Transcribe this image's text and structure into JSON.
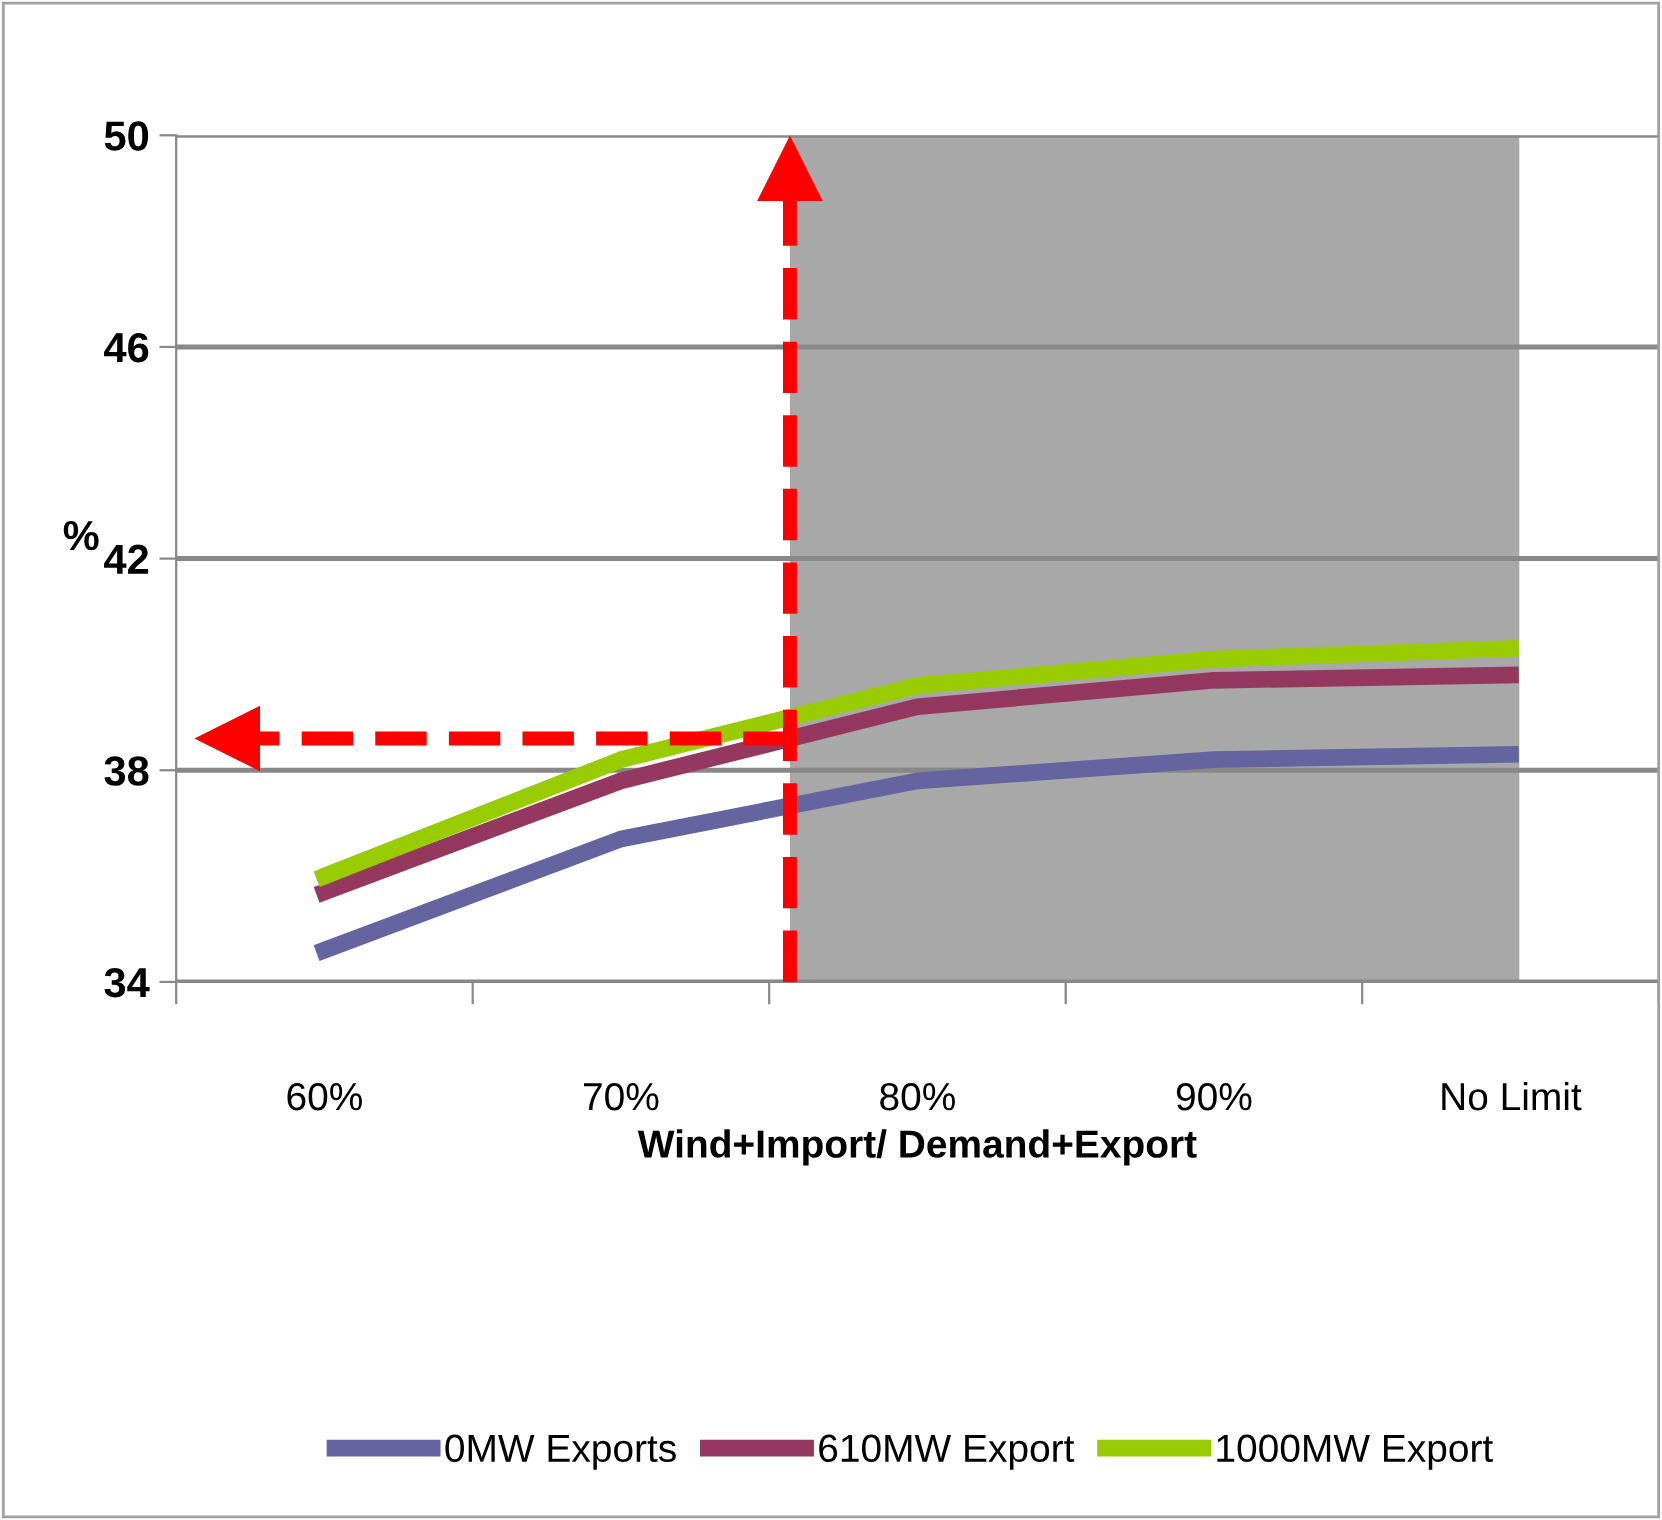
{
  "chart_data": {
    "type": "line",
    "xlabel": "Wind+Import/ Demand+Export",
    "ylabel": "%",
    "x": [
      60,
      70,
      80,
      90,
      100
    ],
    "xlim": [
      55,
      105
    ],
    "xticks": [
      {
        "value": 55,
        "label": null
      },
      {
        "value": 60,
        "label": "60%"
      },
      {
        "value": 65,
        "label": null
      },
      {
        "value": 70,
        "label": "70%"
      },
      {
        "value": 75,
        "label": null
      },
      {
        "value": 80,
        "label": "80%"
      },
      {
        "value": 85,
        "label": null
      },
      {
        "value": 90,
        "label": "90%"
      },
      {
        "value": 95,
        "label": null
      },
      {
        "value": 100,
        "label": "No Limit"
      },
      {
        "value": 105,
        "label": null
      }
    ],
    "series": [
      {
        "name": "0MW Exports",
        "color": "#6464a0",
        "values": [
          34.6,
          36.7,
          37.8,
          38.2,
          38.3
        ]
      },
      {
        "name": "610MW Export",
        "color": "#94385f",
        "values": [
          35.7,
          37.8,
          39.2,
          39.7,
          39.8
        ]
      },
      {
        "name": "1000MW Export",
        "color": "#99cc00",
        "values": [
          36.0,
          38.2,
          39.6,
          40.1,
          40.3
        ]
      }
    ],
    "ylim": [
      34,
      50
    ],
    "yticks": [
      34,
      38,
      42,
      46,
      50
    ],
    "grid": "y",
    "legend": "bottom",
    "line_style": "solid",
    "marker": "none",
    "bands": [
      {
        "axis": "x",
        "from": 75.7,
        "to": 100.3,
        "color": "#a8a8a8"
      }
    ],
    "ref_lines": [
      {
        "axis": "x",
        "value": 75.7,
        "color": "#ff0000",
        "line_style": "dashed"
      },
      {
        "axis": "y",
        "value": 38.6,
        "color": "#ff0000",
        "line_style": "dashed"
      }
    ]
  }
}
